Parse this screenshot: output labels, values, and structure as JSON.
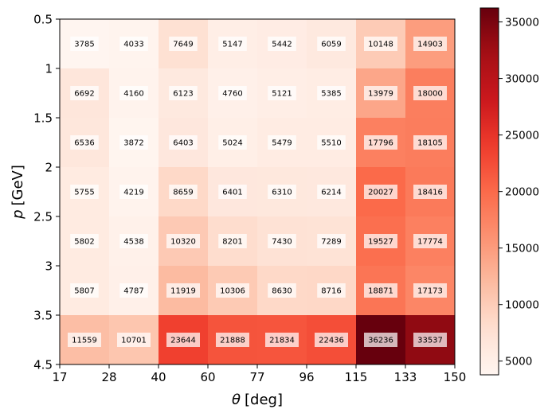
{
  "chart_data": {
    "type": "heatmap",
    "xlabel_symbol": "θ",
    "xlabel_unit": "[deg]",
    "ylabel_symbol": "p",
    "ylabel_unit": "[GeV]",
    "x_edges": [
      "17",
      "28",
      "40",
      "60",
      "77",
      "96",
      "115",
      "133",
      "150"
    ],
    "y_edges": [
      "0.5",
      "1",
      "1.5",
      "2",
      "2.5",
      "3",
      "3.5",
      "4.5"
    ],
    "values": [
      [
        3785,
        4033,
        7649,
        5147,
        5442,
        6059,
        10148,
        14903
      ],
      [
        6692,
        4160,
        6123,
        4760,
        5121,
        5385,
        13979,
        18000
      ],
      [
        6536,
        3872,
        6403,
        5024,
        5479,
        5510,
        17796,
        18105
      ],
      [
        5755,
        4219,
        8659,
        6401,
        6310,
        6214,
        20027,
        18416
      ],
      [
        5802,
        4538,
        10320,
        8201,
        7430,
        7289,
        19527,
        17774
      ],
      [
        5807,
        4787,
        11919,
        10306,
        8630,
        8716,
        18871,
        17173
      ],
      [
        11559,
        10701,
        23644,
        21888,
        21834,
        22436,
        36236,
        33537
      ]
    ],
    "colormap": "Reds",
    "colorbar": {
      "vmin": 3785,
      "vmax": 36236,
      "ticks": [
        5000,
        10000,
        15000,
        20000,
        25000,
        30000,
        35000
      ]
    },
    "grid": false,
    "legend": "none"
  }
}
